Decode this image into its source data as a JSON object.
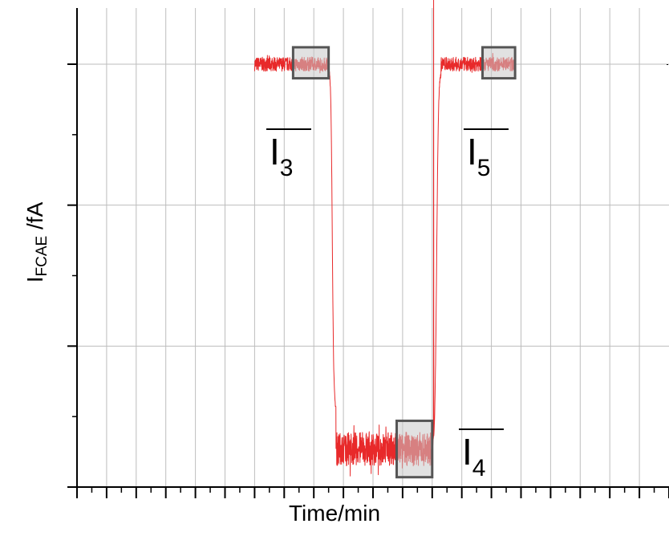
{
  "chart_data": {
    "type": "line",
    "title": "",
    "xlabel": "Time/min",
    "ylabel_main": "I",
    "ylabel_sub": "FCAE",
    "ylabel_unit": " /fA",
    "xlim": [
      0,
      20
    ],
    "ylim": [
      0,
      3
    ],
    "tick_labels_shown": false,
    "grid": true,
    "color": "#e8292a",
    "highlight_fill": "#c8c8c8",
    "highlight_stroke": "#555555",
    "series": [
      {
        "segments": [
          {
            "x_start": 6.0,
            "x_end": 8.5,
            "y": 3.0,
            "noise": 0.05
          },
          {
            "x_start": 8.5,
            "x_end": 8.75,
            "y_from": 3.0,
            "y_to": 0.55,
            "shape": "sigmoid"
          },
          {
            "x_start": 8.75,
            "x_end": 12.0,
            "y": 0.27,
            "noise": 0.12
          },
          {
            "x_start": 12.0,
            "x_end": 12.3,
            "y_from": 0.27,
            "y_to": 2.95,
            "shape": "sigmoid"
          },
          {
            "x_start": 11.9,
            "x_end": 12.0,
            "spike_to": 3.5
          },
          {
            "x_start": 12.3,
            "x_end": 14.8,
            "y": 3.0,
            "noise": 0.05
          }
        ]
      }
    ],
    "highlights": [
      {
        "label": "I",
        "sub": "3",
        "x": [
          7.3,
          8.5
        ],
        "y": [
          2.9,
          3.12
        ]
      },
      {
        "label": "I",
        "sub": "4",
        "x": [
          10.8,
          12.0
        ],
        "y": [
          0.07,
          0.47
        ]
      },
      {
        "label": "I",
        "sub": "5",
        "x": [
          13.7,
          14.8
        ],
        "y": [
          2.9,
          3.12
        ]
      }
    ]
  }
}
